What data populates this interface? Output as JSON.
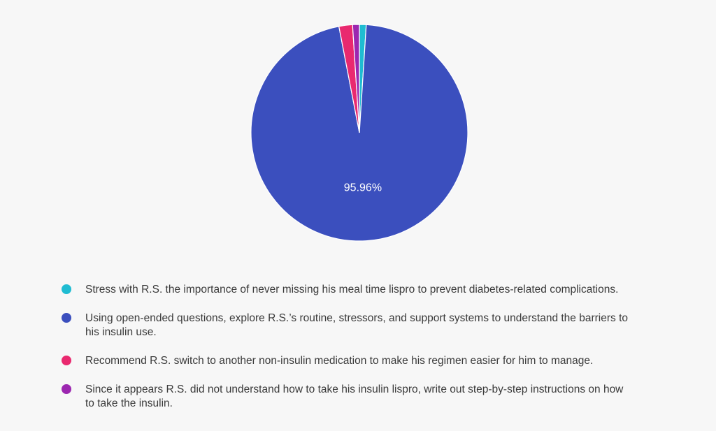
{
  "chart_data": {
    "type": "pie",
    "slices": [
      {
        "label": "Stress with R.S. the importance of never missing his meal time lispro to prevent diabetes-related complications.",
        "value": 1.01,
        "color": "#1fbcd2"
      },
      {
        "label": "Using open-ended questions, explore R.S.’s routine, stressors, and support systems to understand the barriers to his insulin use.",
        "value": 95.96,
        "color": "#3b4fbe",
        "data_label": "95.96%"
      },
      {
        "label": "Recommend R.S. switch to another non-insulin medication to make his regimen easier for him to manage.",
        "value": 2.02,
        "color": "#e9296f"
      },
      {
        "label": "Since it appears R.S. did not understand how to take his insulin lispro, write out step-by-step instructions on how to take the insulin.",
        "value": 1.01,
        "color": "#9c27b0"
      }
    ],
    "legend_position": "bottom"
  }
}
